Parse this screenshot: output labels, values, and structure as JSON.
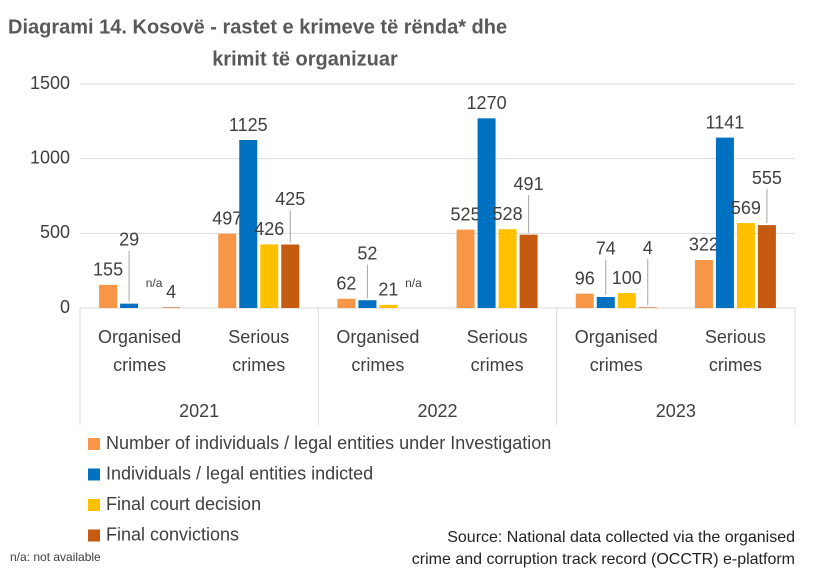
{
  "chart_data": {
    "type": "bar",
    "title": [
      "Diagrami 14. Kosovë - rastet e krimeve të rënda* dhe",
      "krimit të organizuar"
    ],
    "categories": [
      "Organised crimes",
      "Serious crimes",
      "Organised crimes",
      "Serious crimes",
      "Organised crimes",
      "Serious crimes"
    ],
    "category_groups": [
      "2021",
      "2022",
      "2023"
    ],
    "series": [
      {
        "name": "Number of individuals / legal entities under Investigation",
        "color": "#f79646",
        "values": [
          155,
          497,
          62,
          525,
          96,
          322
        ]
      },
      {
        "name": "Individuals / legal entities indicted",
        "color": "#0070c0",
        "values": [
          29,
          1125,
          52,
          1270,
          74,
          1141
        ]
      },
      {
        "name": "Final court decision",
        "color": "#ffc000",
        "values": [
          null,
          426,
          21,
          528,
          100,
          569
        ],
        "value_labels": [
          "n/a",
          "426",
          "21",
          "528",
          "100",
          "569"
        ]
      },
      {
        "name": "Final convictions",
        "color": "#c55a11",
        "values": [
          4,
          425,
          null,
          491,
          4,
          555
        ],
        "value_labels": [
          "4",
          "425",
          "n/a",
          "491",
          "4",
          "555"
        ]
      }
    ],
    "ylim": [
      0,
      1500
    ],
    "yticks": [
      0,
      500,
      1000,
      1500
    ],
    "grid": true,
    "footnote": "n/a: not available",
    "source": [
      "Source: National data collected via the organised",
      "crime and corruption track record (OCCTR) e-platform"
    ]
  }
}
